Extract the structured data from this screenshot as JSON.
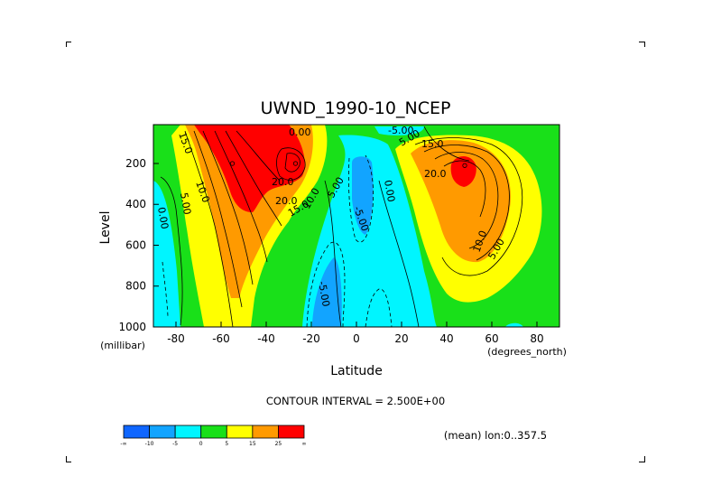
{
  "chart_data": {
    "type": "heatmap",
    "title": "UWND_1990-10_NCEP",
    "xlabel": "Latitude",
    "ylabel": "Level",
    "x_units": "(degrees_north)",
    "y_units": "(millibar)",
    "xlim": [
      -90,
      90
    ],
    "ylim": [
      1000,
      10
    ],
    "x_ticks": [
      "-80",
      "-60",
      "-40",
      "-20",
      "0",
      "20",
      "40",
      "60",
      "80"
    ],
    "y_ticks": [
      "200",
      "400",
      "600",
      "800",
      "1000"
    ],
    "contour_interval_text": "CONTOUR INTERVAL = 2.500E+00",
    "mean_text": "(mean) lon:0..357.5",
    "contour_labels": [
      "0.00",
      "5.00",
      "10.0",
      "15.0",
      "20.0",
      "20.0",
      "15.0",
      "10.0",
      "5.00",
      "10.0",
      "5.00",
      "20.0",
      "15.0",
      "-5.00",
      "0.00",
      "-5.00",
      "5.00",
      "0.00",
      "-5.00"
    ],
    "colorbar": {
      "labels": [
        "-∞",
        "-10",
        "-5",
        "0",
        "5",
        "15",
        "25",
        "∞"
      ],
      "colors": [
        "#0f66ff",
        "#12a4ff",
        "#00f5ff",
        "#19e019",
        "#ffff00",
        "#ff9a00",
        "#ff0000"
      ]
    },
    "jets": [
      {
        "lat": -55,
        "p": 200,
        "u": 35
      },
      {
        "lat": -27,
        "p": 200,
        "u": 30
      },
      {
        "lat": 48,
        "p": 210,
        "u": 30
      }
    ]
  }
}
